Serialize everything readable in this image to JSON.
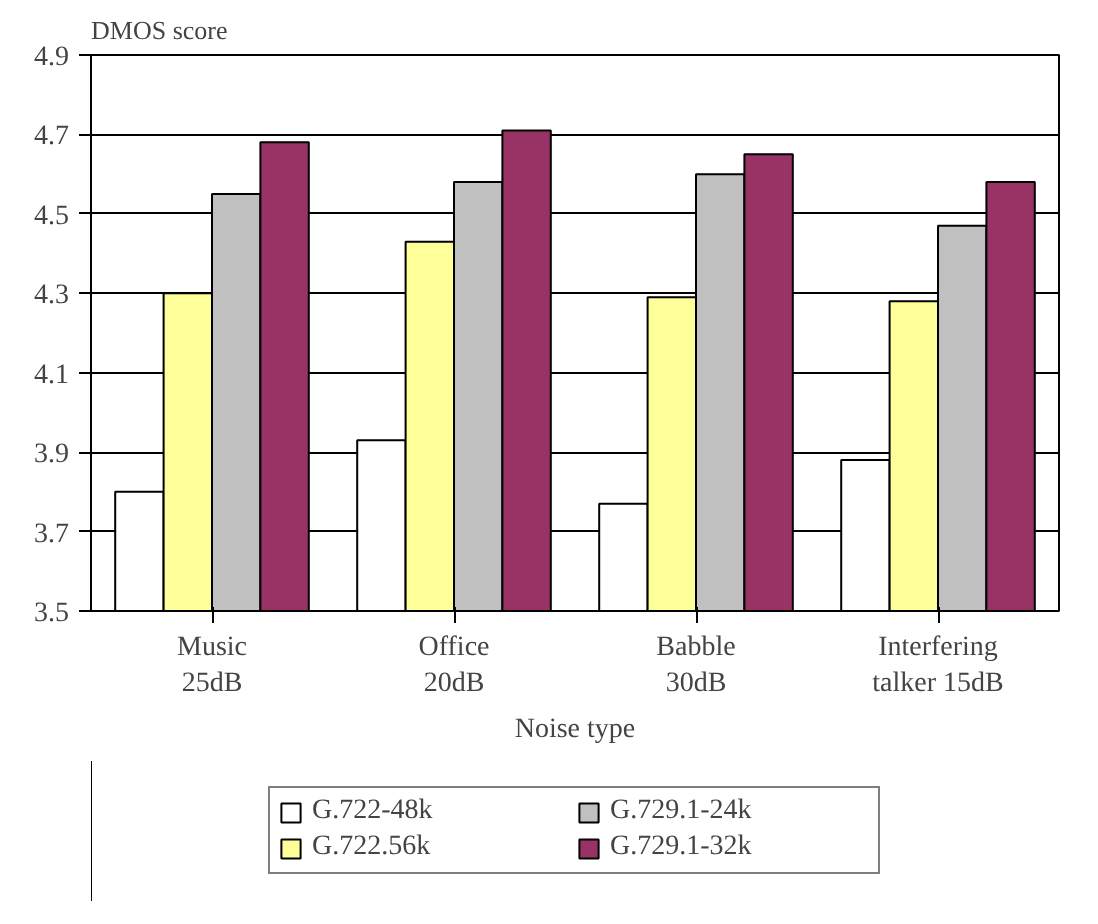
{
  "chart_data": {
    "type": "bar",
    "ylabel": "DMOS score",
    "xlabel": "Noise type",
    "categories": [
      "Music\n25dB",
      "Office\n20dB",
      "Babble\n30dB",
      "Interfering\ntalker 15dB"
    ],
    "series": [
      {
        "name": "G.722-48k",
        "color": "#ffffff",
        "values": [
          3.8,
          3.93,
          3.77,
          3.88
        ]
      },
      {
        "name": "G.722.56k",
        "color": "#ffff99",
        "values": [
          4.3,
          4.43,
          4.29,
          4.28
        ]
      },
      {
        "name": "G.729.1-24k",
        "color": "#c0c0c0",
        "values": [
          4.55,
          4.58,
          4.6,
          4.47
        ]
      },
      {
        "name": "G.729.1-32k",
        "color": "#993366",
        "values": [
          4.68,
          4.71,
          4.65,
          4.58
        ]
      }
    ],
    "ylim": [
      3.5,
      4.9
    ],
    "yticks": [
      3.5,
      3.7,
      3.9,
      4.1,
      4.3,
      4.5,
      4.7,
      4.9
    ],
    "grid": "y",
    "legend": "bottom"
  }
}
